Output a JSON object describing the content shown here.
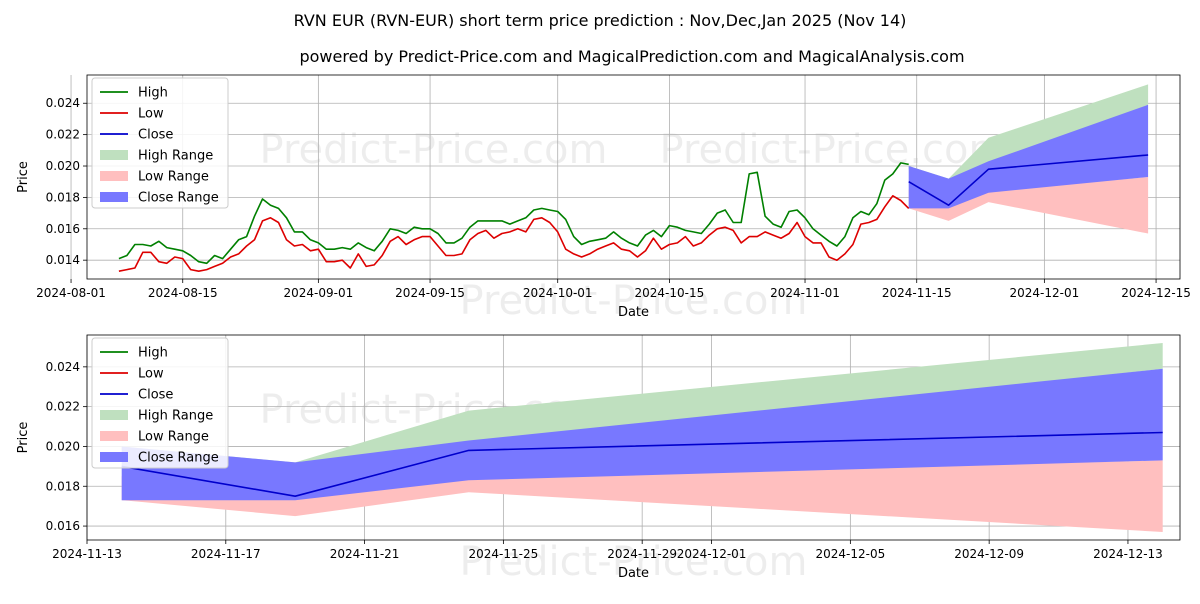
{
  "title": "RVN EUR (RVN-EUR) short term price prediction : Nov,Dec,Jan 2025 (Nov 14)",
  "subtitle": "powered by Predict-Price.com and MagicalPrediction.com and MagicalAnalysis.com",
  "watermark": "Predict-Price.com",
  "colors": {
    "high": "#008000",
    "low": "#dd0000",
    "close": "#0000cc",
    "high_range": "#bfe0bf",
    "low_range": "#ffbfbf",
    "close_range": "#7878ff",
    "grid": "#b0b0b0"
  },
  "chart_data": [
    {
      "type": "line",
      "name": "history-and-forecast",
      "xlabel": "Date",
      "ylabel": "Price",
      "x_ticks": [
        "2024-08-01",
        "2024-08-15",
        "2024-09-01",
        "2024-09-15",
        "2024-10-01",
        "2024-10-15",
        "2024-11-01",
        "2024-11-15",
        "2024-12-01",
        "2024-12-15"
      ],
      "y_ticks": [
        "0.014",
        "0.016",
        "0.018",
        "0.020",
        "0.022",
        "0.024"
      ],
      "xlim": [
        "2024-08-03",
        "2024-12-18"
      ],
      "ylim": [
        0.0128,
        0.0258
      ],
      "legend": [
        "High",
        "Low",
        "Close",
        "High Range",
        "Low Range",
        "Close Range"
      ],
      "legend_position": "top-left",
      "history_dates": [
        "2024-08-07",
        "2024-08-08",
        "2024-08-09",
        "2024-08-10",
        "2024-08-11",
        "2024-08-12",
        "2024-08-13",
        "2024-08-14",
        "2024-08-15",
        "2024-08-16",
        "2024-08-17",
        "2024-08-18",
        "2024-08-19",
        "2024-08-20",
        "2024-08-21",
        "2024-08-22",
        "2024-08-23",
        "2024-08-24",
        "2024-08-25",
        "2024-08-26",
        "2024-08-27",
        "2024-08-28",
        "2024-08-29",
        "2024-08-30",
        "2024-08-31",
        "2024-09-01",
        "2024-09-02",
        "2024-09-03",
        "2024-09-04",
        "2024-09-05",
        "2024-09-06",
        "2024-09-07",
        "2024-09-08",
        "2024-09-09",
        "2024-09-10",
        "2024-09-11",
        "2024-09-12",
        "2024-09-13",
        "2024-09-14",
        "2024-09-15",
        "2024-09-16",
        "2024-09-17",
        "2024-09-18",
        "2024-09-19",
        "2024-09-20",
        "2024-09-21",
        "2024-09-22",
        "2024-09-23",
        "2024-09-24",
        "2024-09-25",
        "2024-09-26",
        "2024-09-27",
        "2024-09-28",
        "2024-09-29",
        "2024-09-30",
        "2024-10-01",
        "2024-10-02",
        "2024-10-03",
        "2024-10-04",
        "2024-10-05",
        "2024-10-06",
        "2024-10-07",
        "2024-10-08",
        "2024-10-09",
        "2024-10-10",
        "2024-10-11",
        "2024-10-12",
        "2024-10-13",
        "2024-10-14",
        "2024-10-15",
        "2024-10-16",
        "2024-10-17",
        "2024-10-18",
        "2024-10-19",
        "2024-10-20",
        "2024-10-21",
        "2024-10-22",
        "2024-10-23",
        "2024-10-24",
        "2024-10-25",
        "2024-10-26",
        "2024-10-27",
        "2024-10-28",
        "2024-10-29",
        "2024-10-30",
        "2024-10-31",
        "2024-11-01",
        "2024-11-02",
        "2024-11-03",
        "2024-11-04",
        "2024-11-05",
        "2024-11-06",
        "2024-11-07",
        "2024-11-08",
        "2024-11-09",
        "2024-11-10",
        "2024-11-11",
        "2024-11-12",
        "2024-11-13",
        "2024-11-14"
      ],
      "high": [
        0.0141,
        0.0143,
        0.015,
        0.015,
        0.0149,
        0.0152,
        0.0148,
        0.0147,
        0.0146,
        0.0143,
        0.0139,
        0.0138,
        0.0143,
        0.0141,
        0.0147,
        0.0153,
        0.0155,
        0.0168,
        0.0179,
        0.0175,
        0.0173,
        0.0167,
        0.0158,
        0.0158,
        0.0153,
        0.0151,
        0.0147,
        0.0147,
        0.0148,
        0.0147,
        0.0151,
        0.0148,
        0.0146,
        0.0152,
        0.016,
        0.0159,
        0.0157,
        0.0161,
        0.016,
        0.016,
        0.0157,
        0.0151,
        0.0151,
        0.0154,
        0.0161,
        0.0165,
        0.0165,
        0.0165,
        0.0165,
        0.0163,
        0.0165,
        0.0167,
        0.0172,
        0.0173,
        0.0172,
        0.0171,
        0.0166,
        0.0155,
        0.015,
        0.0152,
        0.0153,
        0.0154,
        0.0158,
        0.0154,
        0.0151,
        0.0149,
        0.0156,
        0.0159,
        0.0155,
        0.0162,
        0.0161,
        0.0159,
        0.0158,
        0.0157,
        0.0163,
        0.017,
        0.0172,
        0.0164,
        0.0164,
        0.0195,
        0.0196,
        0.0168,
        0.0163,
        0.0161,
        0.0171,
        0.0172,
        0.0167,
        0.016,
        0.0156,
        0.0152,
        0.0149,
        0.0155,
        0.0167,
        0.0171,
        0.0169,
        0.0176,
        0.0191,
        0.0195,
        0.0202,
        0.0201
      ],
      "low": [
        0.0133,
        0.0134,
        0.0135,
        0.0145,
        0.0145,
        0.0139,
        0.0138,
        0.0142,
        0.0141,
        0.0134,
        0.0133,
        0.0134,
        0.0136,
        0.0138,
        0.0142,
        0.0144,
        0.0149,
        0.0153,
        0.0165,
        0.0167,
        0.0164,
        0.0153,
        0.0149,
        0.015,
        0.0146,
        0.0147,
        0.0139,
        0.0139,
        0.014,
        0.0135,
        0.0144,
        0.0136,
        0.0137,
        0.0143,
        0.0152,
        0.0155,
        0.015,
        0.0153,
        0.0155,
        0.0155,
        0.0149,
        0.0143,
        0.0143,
        0.0144,
        0.0153,
        0.0157,
        0.0159,
        0.0154,
        0.0157,
        0.0158,
        0.016,
        0.0158,
        0.0166,
        0.0167,
        0.0164,
        0.0158,
        0.0147,
        0.0144,
        0.0142,
        0.0144,
        0.0147,
        0.0149,
        0.0151,
        0.0147,
        0.0146,
        0.0142,
        0.0146,
        0.0154,
        0.0147,
        0.015,
        0.0151,
        0.0155,
        0.0149,
        0.0151,
        0.0156,
        0.016,
        0.0161,
        0.0159,
        0.0151,
        0.0155,
        0.0155,
        0.0158,
        0.0156,
        0.0154,
        0.0157,
        0.0164,
        0.0155,
        0.0151,
        0.0151,
        0.0142,
        0.014,
        0.0144,
        0.015,
        0.0163,
        0.0164,
        0.0166,
        0.0174,
        0.0181,
        0.0178,
        0.0173
      ]
    },
    {
      "type": "area",
      "name": "forecast-zoom",
      "xlabel": "Date",
      "ylabel": "Price",
      "x_ticks": [
        "2024-11-13",
        "2024-11-17",
        "2024-11-21",
        "2024-11-25",
        "2024-11-29",
        "2024-12-01",
        "2024-12-05",
        "2024-12-09",
        "2024-12-13"
      ],
      "y_ticks": [
        "0.016",
        "0.018",
        "0.020",
        "0.022",
        "0.024"
      ],
      "xlim": [
        "2024-11-13",
        "2024-12-14.5"
      ],
      "ylim": [
        0.0153,
        0.0256
      ],
      "legend": [
        "High",
        "Low",
        "Close",
        "High Range",
        "Low Range",
        "Close Range"
      ],
      "legend_position": "top-left"
    }
  ],
  "forecast": {
    "dates": [
      "2024-11-14",
      "2024-11-19",
      "2024-11-24",
      "2024-12-14"
    ],
    "close": [
      0.019,
      0.0175,
      0.0198,
      0.0207
    ],
    "high_range_upper": [
      0.02,
      0.0192,
      0.0218,
      0.0252
    ],
    "high_range_lower": [
      0.0198,
      0.019,
      0.0201,
      0.0239
    ],
    "close_range_upper": [
      0.02,
      0.0192,
      0.0203,
      0.0239
    ],
    "close_range_lower": [
      0.0173,
      0.0173,
      0.0183,
      0.0193
    ],
    "low_range_upper": [
      0.0185,
      0.0174,
      0.0184,
      0.0193
    ],
    "low_range_lower": [
      0.0173,
      0.0165,
      0.0177,
      0.0157
    ]
  }
}
